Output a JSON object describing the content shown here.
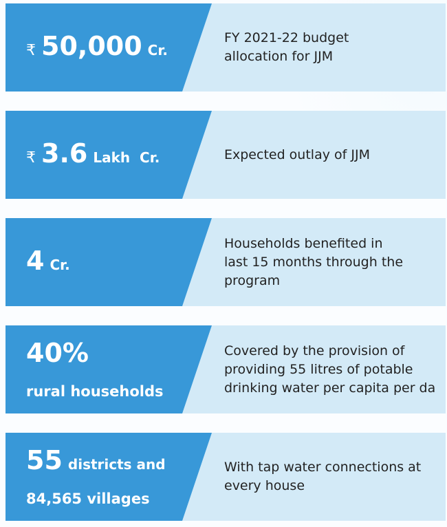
{
  "cards": [
    {
      "prefix": "₹",
      "figure": "50,000",
      "unit": "Cr.",
      "description": [
        "FY 2021-22 budget",
        "allocation for JJM"
      ]
    },
    {
      "prefix": "₹",
      "figure": "3.6",
      "unit": "Lakh  Cr.",
      "description": [
        "Expected outlay of JJM"
      ]
    },
    {
      "figure": "4",
      "unit": "Cr.",
      "description": [
        "Households benefited in",
        "last 15 months through the",
        "program"
      ]
    },
    {
      "figure": "40%",
      "line2": "rural households",
      "description": [
        "Covered by the provision of",
        "providing 55 litres of potable",
        "drinking water per capita per da"
      ]
    },
    {
      "figure": "55",
      "unit": "districts and",
      "line2": "84,565 villages",
      "description": [
        "With tap water connections at",
        "every house"
      ]
    }
  ]
}
